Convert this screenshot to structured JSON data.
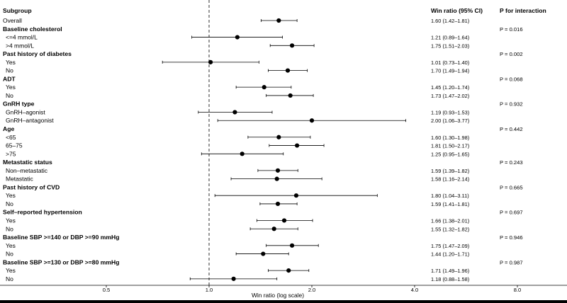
{
  "chart_data": {
    "type": "forest",
    "columns": {
      "subgroup": "Subgroup",
      "estimate": "Win ratio (95% CI)",
      "interaction": "P for interaction"
    },
    "xlabel": "Win ratio (log scale)",
    "x_scale": "log",
    "xlim": [
      0.375,
      10
    ],
    "reference_line": 1.0,
    "x_ticks": [
      "0.5",
      "1.0",
      "2.0",
      "4.0",
      "8.0"
    ],
    "rows": [
      {
        "label": "Overall",
        "group": false,
        "indent": false,
        "est": 1.6,
        "lo": 1.42,
        "hi": 1.81,
        "text": "1.60 (1.42–1.81)"
      },
      {
        "label": "Baseline cholesterol",
        "group": true,
        "p": "P = 0.016"
      },
      {
        "label": "<=4 mmol/L",
        "group": false,
        "indent": true,
        "est": 1.21,
        "lo": 0.89,
        "hi": 1.64,
        "text": "1.21 (0.89–1.64)"
      },
      {
        "label": ">4 mmol/L",
        "group": false,
        "indent": true,
        "est": 1.75,
        "lo": 1.51,
        "hi": 2.03,
        "text": "1.75 (1.51–2.03)"
      },
      {
        "label": "Past history of diabetes",
        "group": true,
        "p": "P = 0.002"
      },
      {
        "label": "Yes",
        "group": false,
        "indent": true,
        "est": 1.01,
        "lo": 0.73,
        "hi": 1.4,
        "text": "1.01 (0.73–1.40)"
      },
      {
        "label": "No",
        "group": false,
        "indent": true,
        "est": 1.7,
        "lo": 1.49,
        "hi": 1.94,
        "text": "1.70 (1.49–1.94)"
      },
      {
        "label": "ADT",
        "group": true,
        "p": "P = 0.068"
      },
      {
        "label": "Yes",
        "group": false,
        "indent": true,
        "est": 1.45,
        "lo": 1.2,
        "hi": 1.74,
        "text": "1.45 (1.20–1.74)"
      },
      {
        "label": "No",
        "group": false,
        "indent": true,
        "est": 1.73,
        "lo": 1.47,
        "hi": 2.02,
        "text": "1.73 (1.47–2.02)"
      },
      {
        "label": "GnRH type",
        "group": true,
        "p": "P = 0.932"
      },
      {
        "label": "GnRH–agonist",
        "group": false,
        "indent": true,
        "est": 1.19,
        "lo": 0.93,
        "hi": 1.53,
        "text": "1.19 (0.93–1.53)"
      },
      {
        "label": "GnRH–antagonist",
        "group": false,
        "indent": true,
        "est": 2.0,
        "lo": 1.06,
        "hi": 3.77,
        "text": "2.00 (1.06–3.77)"
      },
      {
        "label": "Age",
        "group": true,
        "p": "P = 0.442"
      },
      {
        "label": "<65",
        "group": false,
        "indent": true,
        "est": 1.6,
        "lo": 1.3,
        "hi": 1.98,
        "text": "1.60 (1.30–1.98)"
      },
      {
        "label": "65–75",
        "group": false,
        "indent": true,
        "est": 1.81,
        "lo": 1.5,
        "hi": 2.17,
        "text": "1.81 (1.50–2.17)"
      },
      {
        "label": ">75",
        "group": false,
        "indent": true,
        "est": 1.25,
        "lo": 0.95,
        "hi": 1.65,
        "text": "1.25 (0.95–1.65)"
      },
      {
        "label": "Metastatic status",
        "group": true,
        "p": "P = 0.243"
      },
      {
        "label": "Non–metastatic",
        "group": false,
        "indent": true,
        "est": 1.59,
        "lo": 1.39,
        "hi": 1.82,
        "text": "1.59 (1.39–1.82)"
      },
      {
        "label": "Metastatic",
        "group": false,
        "indent": true,
        "est": 1.58,
        "lo": 1.16,
        "hi": 2.14,
        "text": "1.58 (1.16–2.14)"
      },
      {
        "label": "Past history of CVD",
        "group": true,
        "p": "P = 0.665"
      },
      {
        "label": "Yes",
        "group": false,
        "indent": true,
        "est": 1.8,
        "lo": 1.04,
        "hi": 3.11,
        "text": "1.80 (1.04–3.11)"
      },
      {
        "label": "No",
        "group": false,
        "indent": true,
        "est": 1.59,
        "lo": 1.41,
        "hi": 1.81,
        "text": "1.59 (1.41–1.81)"
      },
      {
        "label": "Self–reported hypertension",
        "group": true,
        "p": "P = 0.697"
      },
      {
        "label": "Yes",
        "group": false,
        "indent": true,
        "est": 1.66,
        "lo": 1.38,
        "hi": 2.01,
        "text": "1.66 (1.38–2.01)"
      },
      {
        "label": "No",
        "group": false,
        "indent": true,
        "est": 1.55,
        "lo": 1.32,
        "hi": 1.82,
        "text": "1.55 (1.32–1.82)"
      },
      {
        "label": "Baseline SBP >=140 or DBP >=90 mmHg",
        "group": true,
        "p": "P = 0.946"
      },
      {
        "label": "Yes",
        "group": false,
        "indent": true,
        "est": 1.75,
        "lo": 1.47,
        "hi": 2.09,
        "text": "1.75 (1.47–2.09)"
      },
      {
        "label": "No",
        "group": false,
        "indent": true,
        "est": 1.44,
        "lo": 1.2,
        "hi": 1.71,
        "text": "1.44 (1.20–1.71)"
      },
      {
        "label": "Baseline SBP >=130 or DBP >=80 mmHg",
        "group": true,
        "p": "P = 0.987"
      },
      {
        "label": "Yes",
        "group": false,
        "indent": true,
        "est": 1.71,
        "lo": 1.49,
        "hi": 1.96,
        "text": "1.71 (1.49–1.96)"
      },
      {
        "label": "No",
        "group": false,
        "indent": true,
        "est": 1.18,
        "lo": 0.88,
        "hi": 1.58,
        "text": "1.18 (0.88–1.58)"
      }
    ]
  }
}
